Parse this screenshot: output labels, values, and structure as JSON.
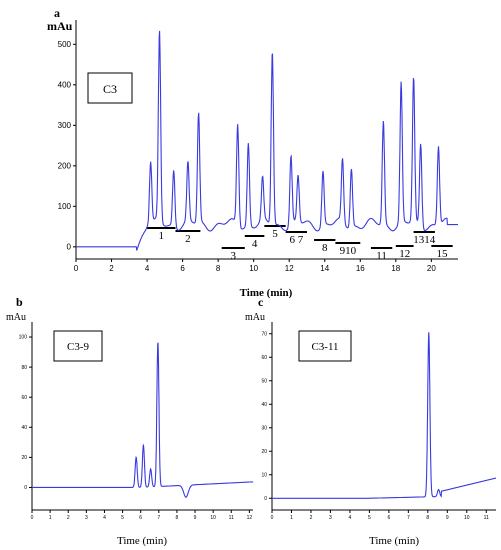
{
  "chart_data": [
    {
      "type": "line",
      "panel_label": "a",
      "sample_label": "C3",
      "ylabel": "mAu",
      "xlabel": "Time (min)",
      "xlim": [
        0,
        21.5
      ],
      "ylim": [
        -30,
        560
      ],
      "x_ticks": [
        "0",
        "2",
        "4",
        "6",
        "8",
        "10",
        "12",
        "14",
        "16",
        "18",
        "20"
      ],
      "y_ticks": [
        "0",
        "100",
        "200",
        "300",
        "400",
        "500"
      ],
      "peaks": [
        {
          "t": 4.2,
          "h": 155
        },
        {
          "t": 4.7,
          "h": 470
        },
        {
          "t": 5.5,
          "h": 140
        },
        {
          "t": 6.3,
          "h": 145
        },
        {
          "t": 6.9,
          "h": 270
        },
        {
          "t": 9.1,
          "h": 250
        },
        {
          "t": 9.7,
          "h": 205
        },
        {
          "t": 10.5,
          "h": 105
        },
        {
          "t": 11.05,
          "h": 430
        },
        {
          "t": 12.1,
          "h": 170
        },
        {
          "t": 12.5,
          "h": 115
        },
        {
          "t": 13.9,
          "h": 135
        },
        {
          "t": 15.0,
          "h": 155
        },
        {
          "t": 15.5,
          "h": 145
        },
        {
          "t": 17.3,
          "h": 255
        },
        {
          "t": 18.3,
          "h": 345
        },
        {
          "t": 19.0,
          "h": 355
        },
        {
          "t": 19.4,
          "h": 205
        },
        {
          "t": 20.4,
          "h": 195
        }
      ],
      "fractions": [
        {
          "label": "1",
          "start": 4.0,
          "end": 5.6
        },
        {
          "label": "2",
          "start": 5.6,
          "end": 7.0
        },
        {
          "label": "3",
          "start": 8.2,
          "end": 9.5
        },
        {
          "label": "4",
          "start": 9.5,
          "end": 10.6
        },
        {
          "label": "5",
          "start": 10.6,
          "end": 11.8
        },
        {
          "label": "6 7",
          "start": 11.8,
          "end": 13.0
        },
        {
          "label": "8",
          "start": 13.4,
          "end": 14.6
        },
        {
          "label": "910",
          "start": 14.6,
          "end": 16.0
        },
        {
          "label": "11",
          "start": 16.6,
          "end": 17.8
        },
        {
          "label": "12",
          "start": 18.0,
          "end": 19.0
        },
        {
          "label": "1314",
          "start": 19.0,
          "end": 20.2
        },
        {
          "label": "15",
          "start": 20.0,
          "end": 21.2
        }
      ]
    },
    {
      "type": "line",
      "panel_label": "b",
      "sample_label": "C3-9",
      "ylabel": "mAu",
      "xlabel": "Time (min)",
      "xlim": [
        0,
        12.2
      ],
      "ylim": [
        -15,
        110
      ],
      "x_ticks": [
        "0",
        "1",
        "2",
        "3",
        "4",
        "5",
        "6",
        "7",
        "8",
        "9",
        "10",
        "11",
        "12"
      ],
      "y_ticks": [
        "0",
        "20",
        "40",
        "60",
        "80",
        "100"
      ],
      "peaks": [
        {
          "t": 5.75,
          "h": 20
        },
        {
          "t": 6.15,
          "h": 28
        },
        {
          "t": 6.55,
          "h": 12
        },
        {
          "t": 6.95,
          "h": 96
        }
      ]
    },
    {
      "type": "line",
      "panel_label": "c",
      "sample_label": "C3-11",
      "ylabel": "mAu",
      "xlabel": "Time (min)",
      "xlim": [
        0,
        11.5
      ],
      "ylim": [
        -5,
        75
      ],
      "x_ticks": [
        "0",
        "1",
        "2",
        "3",
        "4",
        "5",
        "6",
        "7",
        "8",
        "9",
        "10",
        "11"
      ],
      "y_ticks": [
        "0",
        "10",
        "20",
        "30",
        "40",
        "50",
        "60",
        "70"
      ],
      "peaks": [
        {
          "t": 8.05,
          "h": 70
        },
        {
          "t": 8.55,
          "h": 3
        }
      ]
    }
  ]
}
